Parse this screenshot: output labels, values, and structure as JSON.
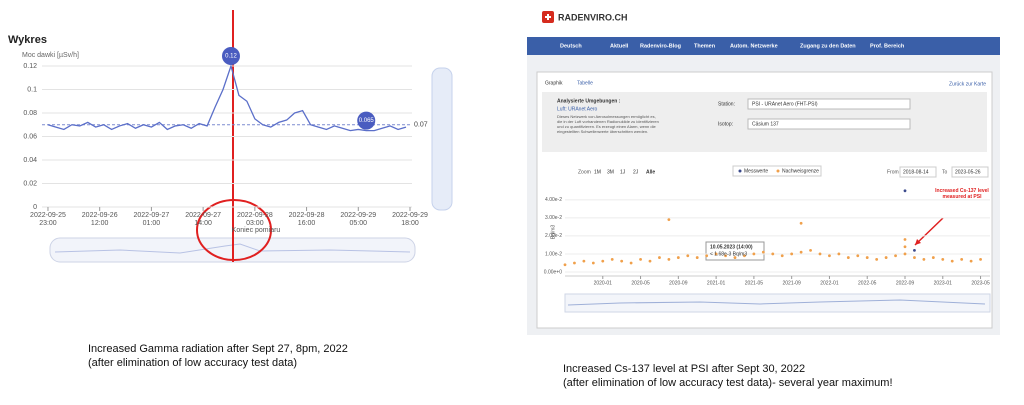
{
  "chart_data": [
    {
      "type": "line",
      "title": "Wykres",
      "y_label": "Moc dawki [µSv/h]",
      "color": "#5b6fc9",
      "x": [
        0,
        2,
        4,
        6,
        8,
        10,
        12,
        14,
        16,
        18,
        20,
        22,
        24,
        26,
        28,
        30,
        32,
        34,
        36,
        38,
        40,
        42,
        44,
        46,
        48,
        50,
        52,
        54,
        56,
        58,
        60,
        62,
        64,
        66,
        68,
        70,
        72,
        74,
        76,
        78,
        80,
        82,
        84,
        86,
        88,
        90
      ],
      "values": [
        0.07,
        0.068,
        0.066,
        0.07,
        0.069,
        0.072,
        0.068,
        0.07,
        0.066,
        0.069,
        0.071,
        0.067,
        0.07,
        0.068,
        0.072,
        0.066,
        0.069,
        0.07,
        0.067,
        0.071,
        0.069,
        0.085,
        0.1,
        0.12,
        0.095,
        0.09,
        0.075,
        0.07,
        0.068,
        0.072,
        0.074,
        0.08,
        0.082,
        0.07,
        0.068,
        0.066,
        0.069,
        0.067,
        0.065,
        0.066,
        0.065,
        0.065,
        0.067,
        0.069,
        0.066,
        0.068
      ],
      "xlim": [
        -1.5,
        91.5
      ],
      "ylim": [
        0,
        0.12
      ],
      "yticks": [
        0,
        0.02,
        0.04,
        0.06,
        0.08,
        0.1,
        0.12
      ],
      "xticks": [
        {
          "value": 0,
          "label": "2022-09-25\n23:00"
        },
        {
          "value": 13,
          "label": "2022-09-26\n12:00"
        },
        {
          "value": 26,
          "label": "2022-09-27\n01:00"
        },
        {
          "value": 39,
          "label": "2022-09-27\n14:00"
        },
        {
          "value": 52,
          "label": "2022-09-28\n03:00"
        },
        {
          "value": 65,
          "label": "2022-09-28\n16:00"
        },
        {
          "value": 78,
          "label": "2022-09-29\n05:00"
        },
        {
          "value": 91,
          "label": "2022-09-29\n18:00"
        }
      ],
      "grid": true,
      "reference_value": 0.07,
      "markers": [
        {
          "x": 46,
          "y": 0.12
        },
        {
          "x": 80,
          "y": 0.065
        }
      ],
      "annotation": "Koniec pomiaru"
    },
    {
      "type": "scatter",
      "y_label": "Bq/m3",
      "xlim": [
        "2019-09",
        "2023-06"
      ],
      "ylim": [
        0,
        0.046
      ],
      "xticks": [
        "2020-01",
        "2020-05",
        "2020-09",
        "2021-01",
        "2021-05",
        "2021-09",
        "2022-01",
        "2022-05",
        "2022-09",
        "2023-01",
        "2023-05"
      ],
      "yticks": [
        {
          "value": 0,
          "label": "0.00e+0"
        },
        {
          "value": 0.01,
          "label": "1.00e-2"
        },
        {
          "value": 0.02,
          "label": "2.00e-2"
        },
        {
          "value": 0.03,
          "label": "3.00e-2"
        },
        {
          "value": 0.04,
          "label": "4.00e-2"
        }
      ],
      "series": [
        {
          "name": "Messwerte",
          "color": "#3b4a8c",
          "x": [
            "2022-09",
            "2022-10"
          ],
          "values": [
            0.045,
            0.012
          ]
        },
        {
          "name": "Nachweisgrenze",
          "color": "#f0a04b",
          "x": [
            "2019-09",
            "2019-10",
            "2019-11",
            "2019-12",
            "2020-01",
            "2020-02",
            "2020-03",
            "2020-04",
            "2020-05",
            "2020-06",
            "2020-07",
            "2020-08",
            "2020-09",
            "2020-10",
            "2020-11",
            "2020-12",
            "2021-01",
            "2021-02",
            "2021-03",
            "2021-04",
            "2021-05",
            "2021-06",
            "2021-07",
            "2021-08",
            "2021-09",
            "2021-10",
            "2021-11",
            "2021-12",
            "2022-01",
            "2022-02",
            "2022-03",
            "2022-04",
            "2022-05",
            "2022-06",
            "2022-07",
            "2022-08",
            "2022-09",
            "2022-10",
            "2022-11",
            "2022-12",
            "2023-01",
            "2023-02",
            "2023-03",
            "2023-04",
            "2023-05",
            "2020-08",
            "2021-10",
            "2022-09",
            "2022-09"
          ],
          "values": [
            0.004,
            0.005,
            0.006,
            0.005,
            0.006,
            0.007,
            0.006,
            0.005,
            0.007,
            0.006,
            0.008,
            0.007,
            0.008,
            0.009,
            0.008,
            0.009,
            0.01,
            0.009,
            0.008,
            0.009,
            0.01,
            0.011,
            0.01,
            0.009,
            0.01,
            0.011,
            0.012,
            0.01,
            0.009,
            0.01,
            0.008,
            0.009,
            0.008,
            0.007,
            0.008,
            0.009,
            0.01,
            0.008,
            0.007,
            0.008,
            0.007,
            0.006,
            0.007,
            0.006,
            0.007,
            0.029,
            0.027,
            0.018,
            0.014
          ]
        }
      ],
      "annotation": "Increased Cs-137 level\nmeasured at PSI",
      "tooltip": [
        "10.05.2023 (14:00)",
        "< 1.68e-3 Bq/m3"
      ]
    }
  ],
  "site": {
    "brand": "RADENVIRO.CH",
    "nav": [
      "Deutsch",
      "Aktuell",
      "Radenviro-Blog",
      "Themen",
      "Autom. Netzwerke",
      "Zugang zu den Daten",
      "Prof. Bereich"
    ],
    "tabs": [
      "Graphik",
      "Tabelle"
    ],
    "back_link": "Zurück zur Karte",
    "analysis_title": "Analysierte Umgebungen :",
    "environment": "Luft: URAnet Aero",
    "description": [
      "Dieses Netzwerk von Aerosolmessungen ermöglicht es,",
      "die in der Luft vorhandenen Radionuklide zu identifizieren",
      "und zu quantifizieren. Es erzeugt einen Alarm, wenn die",
      "eingestellten Schwellenwerte überschritten werden."
    ],
    "station_label": "Station:",
    "station": "PSI - URAnet Aero (FHT-PSI)",
    "isotope_label": "Isotop:",
    "isotope": "Cäsium 137",
    "zoom_label": "Zoom",
    "zoom": [
      "1M",
      "3M",
      "1J",
      "2J",
      "Alle"
    ],
    "from_label": "From",
    "from": "2018-08-14",
    "to_label": "To",
    "to": "2023-05-26"
  },
  "left_caption": [
    "Increased Gamma radiation after Sept 27, 8pm, 2022",
    "(after elimination of low accuracy test data)"
  ],
  "right_caption": [
    "Increased Cs-137 level at PSI after Sept 30, 2022",
    "(after elimination of low accuracy test data)- several year maximum!"
  ]
}
